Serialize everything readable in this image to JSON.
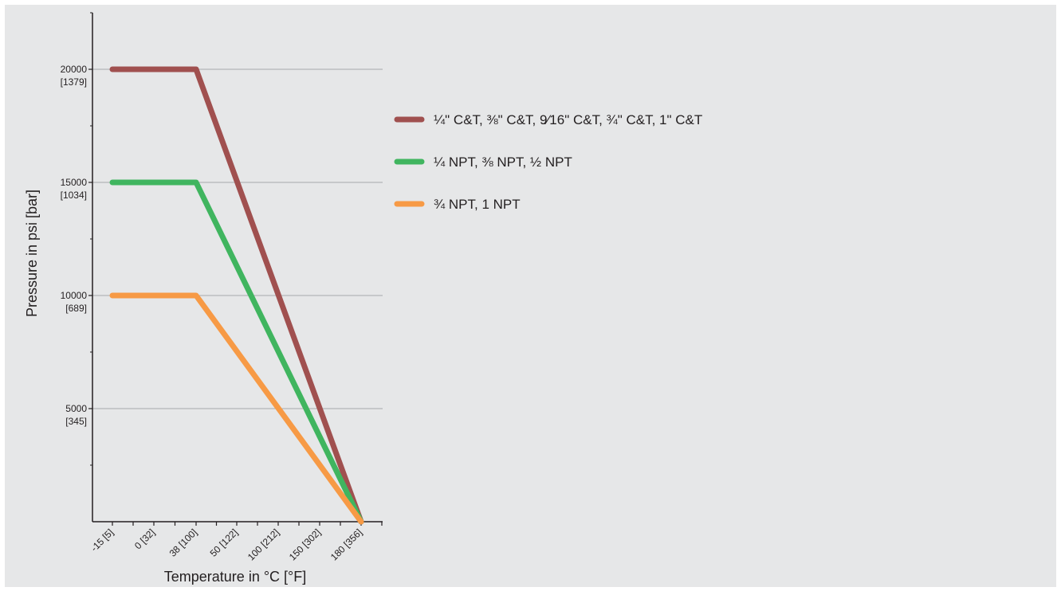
{
  "chart_data": {
    "type": "line",
    "title": "",
    "xlabel": "Temperature in °C [°F]",
    "ylabel": "Pressure in psi [bar]",
    "x_ticks": [
      {
        "value": -15,
        "label": "-15 [5]"
      },
      {
        "value": 0,
        "label": "0 [32]"
      },
      {
        "value": 38,
        "label": "38 [100]"
      },
      {
        "value": 50,
        "label": "50 [122]"
      },
      {
        "value": 100,
        "label": "100 [212]"
      },
      {
        "value": 150,
        "label": "150 [302]"
      },
      {
        "value": 180,
        "label": "180 [356]"
      }
    ],
    "y_ticks": [
      {
        "value": 5000,
        "label": "5000",
        "sublabel": "[345]"
      },
      {
        "value": 10000,
        "label": "10000",
        "sublabel": "[689]"
      },
      {
        "value": 15000,
        "label": "15000",
        "sublabel": "[1034]"
      },
      {
        "value": 20000,
        "label": "20000",
        "sublabel": "[1379]"
      }
    ],
    "ylim": [
      0,
      23000
    ],
    "grid": "horizontal",
    "legend_position": "right",
    "series": [
      {
        "name": "¼\" C&T, ⅜\" C&T, 9⁄16\" C&T, ¾\" C&T, 1\" C&T",
        "color": "#a0504f",
        "points": [
          [
            -15,
            20000
          ],
          [
            38,
            20000
          ],
          [
            180,
            0
          ]
        ]
      },
      {
        "name": "¼ NPT, ⅜ NPT, ½ NPT",
        "color": "#40b55f",
        "points": [
          [
            -15,
            15000
          ],
          [
            38,
            15000
          ],
          [
            180,
            0
          ]
        ]
      },
      {
        "name": "¾ NPT, 1 NPT",
        "color": "#f79a45",
        "points": [
          [
            -15,
            10000
          ],
          [
            38,
            10000
          ],
          [
            180,
            0
          ]
        ]
      }
    ]
  }
}
